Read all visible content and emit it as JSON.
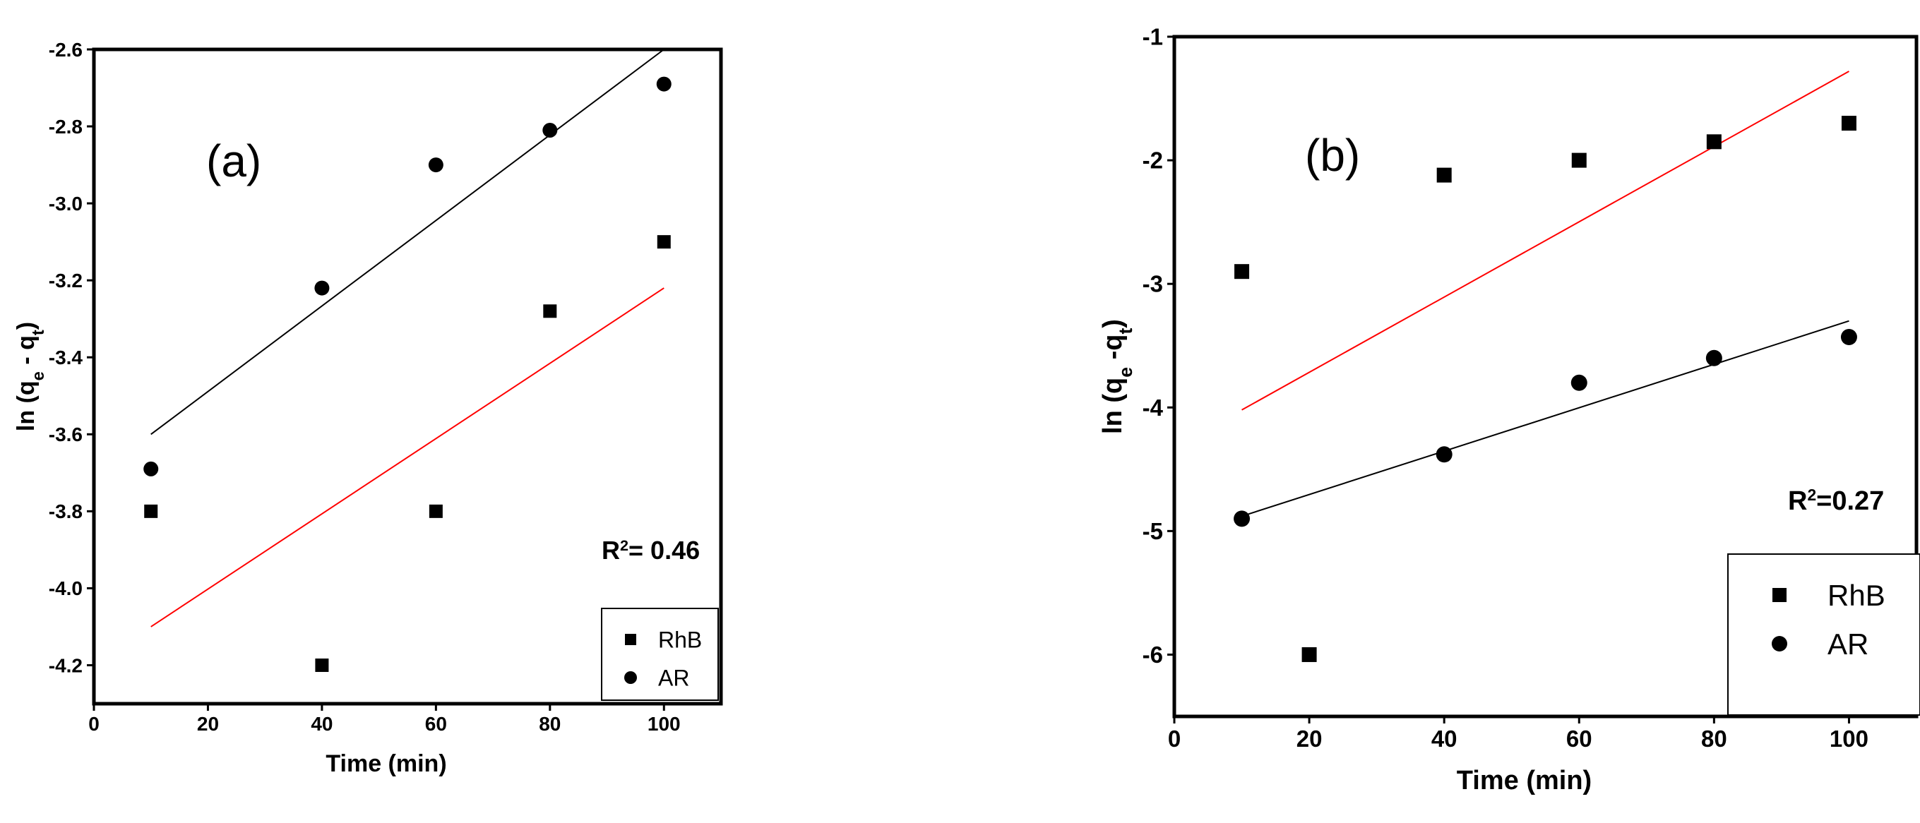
{
  "chart_data": [
    {
      "type": "scatter",
      "panel_label": "(a)",
      "xlabel": "Time (min)",
      "ylabel_main": "ln (q",
      "ylabel_sub1": "e",
      "ylabel_mid": " - q",
      "ylabel_sub2": "t",
      "ylabel_end": ")",
      "xlim": [
        0,
        110
      ],
      "ylim": [
        -4.3,
        -2.6
      ],
      "xticks": [
        0,
        20,
        40,
        60,
        80,
        100
      ],
      "yticks": [
        -4.2,
        -4.0,
        -3.8,
        -3.6,
        -3.4,
        -3.2,
        -3.0,
        -2.8,
        -2.6
      ],
      "ytick_decimals": 1,
      "r2_text": "R",
      "r2_sup": "2",
      "r2_value": "= 0.46",
      "series": [
        {
          "name": "RhB",
          "marker": "square",
          "x": [
            10,
            40,
            60,
            80,
            100
          ],
          "y": [
            -3.8,
            -4.2,
            -3.8,
            -3.28,
            -3.1
          ],
          "fit": {
            "color": "#ff0000",
            "x": [
              10,
              100
            ],
            "y": [
              -4.1,
              -3.22
            ]
          }
        },
        {
          "name": "AR",
          "marker": "circle",
          "x": [
            10,
            40,
            60,
            80,
            100
          ],
          "y": [
            -3.69,
            -3.22,
            -2.9,
            -2.81,
            -2.69
          ],
          "fit": {
            "color": "#000000",
            "x": [
              10,
              100
            ],
            "y": [
              -3.6,
              -2.6
            ]
          }
        }
      ],
      "legend": {
        "placement": "bottom-right",
        "entries": [
          "RhB",
          "AR"
        ]
      }
    },
    {
      "type": "scatter",
      "panel_label": "(b)",
      "xlabel": "Time (min)",
      "ylabel_main": "ln (q",
      "ylabel_sub1": "e",
      "ylabel_mid": " -q",
      "ylabel_sub2": "t",
      "ylabel_end": ")",
      "xlim": [
        0,
        110
      ],
      "ylim": [
        -6.5,
        -1
      ],
      "xticks": [
        0,
        20,
        40,
        60,
        80,
        100
      ],
      "yticks": [
        -6,
        -5,
        -4,
        -3,
        -2,
        -1
      ],
      "ytick_decimals": 0,
      "r2_text": "R",
      "r2_sup": "2",
      "r2_value": "=0.27",
      "series": [
        {
          "name": "RhB",
          "marker": "square",
          "x": [
            10,
            20,
            40,
            60,
            80,
            100
          ],
          "y": [
            -2.9,
            -6.0,
            -2.12,
            -2.0,
            -1.85,
            -1.7
          ],
          "fit": {
            "color": "#ff0000",
            "x": [
              10,
              100
            ],
            "y": [
              -4.02,
              -1.28
            ]
          }
        },
        {
          "name": "AR",
          "marker": "circle",
          "x": [
            10,
            40,
            60,
            80,
            100
          ],
          "y": [
            -4.9,
            -4.38,
            -3.8,
            -3.6,
            -3.43
          ],
          "fit": {
            "color": "#000000",
            "x": [
              10,
              100
            ],
            "y": [
              -4.88,
              -3.3
            ]
          }
        }
      ],
      "legend": {
        "placement": "bottom-right",
        "entries": [
          "RhB",
          "AR"
        ]
      }
    }
  ]
}
